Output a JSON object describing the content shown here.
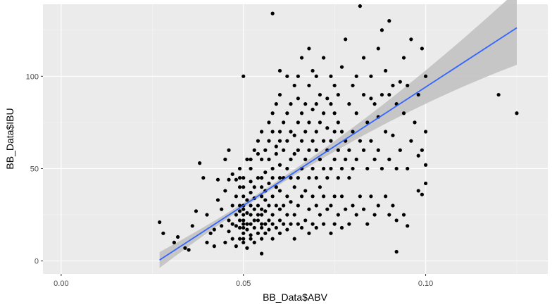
{
  "chart_data": {
    "type": "scatter",
    "title": "",
    "xlabel": "BB_Data$ABV",
    "ylabel": "BB_Data$IBU",
    "xlim": [
      -0.005,
      0.1335
    ],
    "ylim": [
      -7,
      139
    ],
    "x_ticks": [
      0.0,
      0.05,
      0.1
    ],
    "x_tick_labels": [
      "0.00",
      "0.05",
      "0.10"
    ],
    "y_ticks": [
      0,
      50,
      100
    ],
    "y_tick_labels": [
      "0",
      "50",
      "100"
    ],
    "grid": true,
    "legend": "none",
    "colors": {
      "panel_background": "#ebebeb",
      "grid_major": "#ffffff",
      "grid_minor": "#f5f5f5",
      "points": "#000000",
      "fit_line": "#3366ff",
      "confidence_band": "#c2c2c2"
    },
    "trend_line": {
      "method": "linear",
      "x_range": [
        0.027,
        0.125
      ],
      "intercept": -34.1,
      "slope": 1282.5,
      "se_band": true
    },
    "points": [
      [
        0.027,
        21
      ],
      [
        0.028,
        15
      ],
      [
        0.031,
        10
      ],
      [
        0.032,
        13
      ],
      [
        0.034,
        7
      ],
      [
        0.035,
        6
      ],
      [
        0.036,
        19
      ],
      [
        0.037,
        27
      ],
      [
        0.038,
        53
      ],
      [
        0.039,
        45
      ],
      [
        0.04,
        10
      ],
      [
        0.04,
        25
      ],
      [
        0.041,
        15
      ],
      [
        0.042,
        17
      ],
      [
        0.042,
        8
      ],
      [
        0.043,
        44
      ],
      [
        0.043,
        33
      ],
      [
        0.044,
        19
      ],
      [
        0.044,
        28
      ],
      [
        0.045,
        10
      ],
      [
        0.045,
        38
      ],
      [
        0.045,
        55
      ],
      [
        0.046,
        16
      ],
      [
        0.046,
        22
      ],
      [
        0.046,
        44
      ],
      [
        0.046,
        60
      ],
      [
        0.047,
        30
      ],
      [
        0.047,
        12
      ],
      [
        0.047,
        47
      ],
      [
        0.047,
        20
      ],
      [
        0.048,
        19
      ],
      [
        0.048,
        25
      ],
      [
        0.048,
        8
      ],
      [
        0.048,
        35
      ],
      [
        0.048,
        44
      ],
      [
        0.049,
        18
      ],
      [
        0.049,
        22
      ],
      [
        0.049,
        27
      ],
      [
        0.049,
        30
      ],
      [
        0.049,
        12
      ],
      [
        0.049,
        40
      ],
      [
        0.049,
        45
      ],
      [
        0.049,
        50
      ],
      [
        0.05,
        15
      ],
      [
        0.05,
        20
      ],
      [
        0.05,
        22
      ],
      [
        0.05,
        25
      ],
      [
        0.05,
        28
      ],
      [
        0.05,
        18
      ],
      [
        0.05,
        30
      ],
      [
        0.05,
        35
      ],
      [
        0.05,
        100
      ],
      [
        0.05,
        40
      ],
      [
        0.05,
        10
      ],
      [
        0.05,
        12
      ],
      [
        0.05,
        45
      ],
      [
        0.051,
        17
      ],
      [
        0.051,
        20
      ],
      [
        0.051,
        26
      ],
      [
        0.051,
        33
      ],
      [
        0.051,
        55
      ],
      [
        0.051,
        7
      ],
      [
        0.052,
        14
      ],
      [
        0.052,
        20
      ],
      [
        0.052,
        25
      ],
      [
        0.052,
        30
      ],
      [
        0.052,
        37
      ],
      [
        0.052,
        43
      ],
      [
        0.052,
        12
      ],
      [
        0.052,
        50
      ],
      [
        0.052,
        55
      ],
      [
        0.053,
        18
      ],
      [
        0.053,
        22
      ],
      [
        0.053,
        28
      ],
      [
        0.053,
        34
      ],
      [
        0.053,
        40
      ],
      [
        0.053,
        60
      ],
      [
        0.053,
        10
      ],
      [
        0.054,
        15
      ],
      [
        0.054,
        22
      ],
      [
        0.054,
        25
      ],
      [
        0.054,
        30
      ],
      [
        0.054,
        45
      ],
      [
        0.054,
        58
      ],
      [
        0.054,
        65
      ],
      [
        0.055,
        18
      ],
      [
        0.055,
        20
      ],
      [
        0.055,
        25
      ],
      [
        0.055,
        28
      ],
      [
        0.055,
        35
      ],
      [
        0.055,
        40
      ],
      [
        0.055,
        45
      ],
      [
        0.055,
        55
      ],
      [
        0.055,
        70
      ],
      [
        0.055,
        4
      ],
      [
        0.055,
        12
      ],
      [
        0.056,
        20
      ],
      [
        0.056,
        27
      ],
      [
        0.056,
        33
      ],
      [
        0.056,
        38
      ],
      [
        0.056,
        48
      ],
      [
        0.056,
        60
      ],
      [
        0.056,
        15
      ],
      [
        0.057,
        22
      ],
      [
        0.057,
        30
      ],
      [
        0.057,
        42
      ],
      [
        0.057,
        55
      ],
      [
        0.057,
        65
      ],
      [
        0.057,
        75
      ],
      [
        0.057,
        17
      ],
      [
        0.058,
        20
      ],
      [
        0.058,
        25
      ],
      [
        0.058,
        35
      ],
      [
        0.058,
        45
      ],
      [
        0.058,
        50
      ],
      [
        0.058,
        70
      ],
      [
        0.058,
        80
      ],
      [
        0.058,
        12
      ],
      [
        0.058,
        134
      ],
      [
        0.059,
        18
      ],
      [
        0.059,
        30
      ],
      [
        0.059,
        40
      ],
      [
        0.059,
        58
      ],
      [
        0.059,
        62
      ],
      [
        0.059,
        85
      ],
      [
        0.06,
        15
      ],
      [
        0.06,
        22
      ],
      [
        0.06,
        28
      ],
      [
        0.06,
        38
      ],
      [
        0.06,
        45
      ],
      [
        0.06,
        52
      ],
      [
        0.06,
        65
      ],
      [
        0.06,
        70
      ],
      [
        0.06,
        90
      ],
      [
        0.06,
        103
      ],
      [
        0.061,
        20
      ],
      [
        0.061,
        30
      ],
      [
        0.061,
        45
      ],
      [
        0.061,
        60
      ],
      [
        0.061,
        75
      ],
      [
        0.062,
        17
      ],
      [
        0.062,
        25
      ],
      [
        0.062,
        35
      ],
      [
        0.062,
        50
      ],
      [
        0.062,
        65
      ],
      [
        0.062,
        80
      ],
      [
        0.062,
        100
      ],
      [
        0.063,
        20
      ],
      [
        0.063,
        32
      ],
      [
        0.063,
        45
      ],
      [
        0.063,
        55
      ],
      [
        0.063,
        70
      ],
      [
        0.063,
        85
      ],
      [
        0.064,
        12
      ],
      [
        0.064,
        25
      ],
      [
        0.064,
        40
      ],
      [
        0.064,
        58
      ],
      [
        0.064,
        68
      ],
      [
        0.064,
        95
      ],
      [
        0.065,
        20
      ],
      [
        0.065,
        30
      ],
      [
        0.065,
        45
      ],
      [
        0.065,
        60
      ],
      [
        0.065,
        75
      ],
      [
        0.065,
        88
      ],
      [
        0.065,
        100
      ],
      [
        0.066,
        18
      ],
      [
        0.066,
        35
      ],
      [
        0.066,
        50
      ],
      [
        0.066,
        65
      ],
      [
        0.066,
        80
      ],
      [
        0.066,
        110
      ],
      [
        0.067,
        22
      ],
      [
        0.067,
        38
      ],
      [
        0.067,
        55
      ],
      [
        0.067,
        70
      ],
      [
        0.067,
        85
      ],
      [
        0.068,
        15
      ],
      [
        0.068,
        28
      ],
      [
        0.068,
        45
      ],
      [
        0.068,
        60
      ],
      [
        0.068,
        75
      ],
      [
        0.068,
        95
      ],
      [
        0.068,
        115
      ],
      [
        0.069,
        20
      ],
      [
        0.069,
        35
      ],
      [
        0.069,
        50
      ],
      [
        0.069,
        65
      ],
      [
        0.069,
        82
      ],
      [
        0.069,
        103
      ],
      [
        0.07,
        18
      ],
      [
        0.07,
        30
      ],
      [
        0.07,
        45
      ],
      [
        0.07,
        60
      ],
      [
        0.07,
        70
      ],
      [
        0.07,
        85
      ],
      [
        0.07,
        100
      ],
      [
        0.071,
        25
      ],
      [
        0.071,
        40
      ],
      [
        0.071,
        55
      ],
      [
        0.071,
        75
      ],
      [
        0.071,
        90
      ],
      [
        0.072,
        20
      ],
      [
        0.072,
        35
      ],
      [
        0.072,
        50
      ],
      [
        0.072,
        65
      ],
      [
        0.072,
        80
      ],
      [
        0.072,
        110
      ],
      [
        0.073,
        28
      ],
      [
        0.073,
        45
      ],
      [
        0.073,
        60
      ],
      [
        0.073,
        72
      ],
      [
        0.073,
        88
      ],
      [
        0.074,
        15
      ],
      [
        0.074,
        30
      ],
      [
        0.074,
        50
      ],
      [
        0.074,
        65
      ],
      [
        0.074,
        85
      ],
      [
        0.074,
        100
      ],
      [
        0.075,
        20
      ],
      [
        0.075,
        35
      ],
      [
        0.075,
        55
      ],
      [
        0.075,
        70
      ],
      [
        0.075,
        80
      ],
      [
        0.075,
        95
      ],
      [
        0.076,
        25
      ],
      [
        0.076,
        45
      ],
      [
        0.076,
        60
      ],
      [
        0.076,
        75
      ],
      [
        0.076,
        90
      ],
      [
        0.077,
        18
      ],
      [
        0.077,
        35
      ],
      [
        0.077,
        50
      ],
      [
        0.077,
        70
      ],
      [
        0.077,
        105
      ],
      [
        0.078,
        28
      ],
      [
        0.078,
        55
      ],
      [
        0.078,
        65
      ],
      [
        0.078,
        120
      ],
      [
        0.079,
        20
      ],
      [
        0.079,
        45
      ],
      [
        0.079,
        60
      ],
      [
        0.079,
        85
      ],
      [
        0.08,
        30
      ],
      [
        0.08,
        50
      ],
      [
        0.08,
        70
      ],
      [
        0.08,
        95
      ],
      [
        0.081,
        25
      ],
      [
        0.081,
        55
      ],
      [
        0.081,
        80
      ],
      [
        0.081,
        100
      ],
      [
        0.082,
        35
      ],
      [
        0.082,
        65
      ],
      [
        0.082,
        138
      ],
      [
        0.083,
        28
      ],
      [
        0.083,
        60
      ],
      [
        0.083,
        90
      ],
      [
        0.083,
        110
      ],
      [
        0.084,
        20
      ],
      [
        0.084,
        50
      ],
      [
        0.084,
        75
      ],
      [
        0.085,
        35
      ],
      [
        0.085,
        65
      ],
      [
        0.085,
        88
      ],
      [
        0.085,
        100
      ],
      [
        0.086,
        25
      ],
      [
        0.086,
        55
      ],
      [
        0.086,
        85
      ],
      [
        0.087,
        30
      ],
      [
        0.087,
        60
      ],
      [
        0.087,
        78
      ],
      [
        0.087,
        115
      ],
      [
        0.088,
        50
      ],
      [
        0.088,
        90
      ],
      [
        0.088,
        125
      ],
      [
        0.089,
        35
      ],
      [
        0.089,
        70
      ],
      [
        0.089,
        103
      ],
      [
        0.09,
        25
      ],
      [
        0.09,
        55
      ],
      [
        0.09,
        90
      ],
      [
        0.09,
        130
      ],
      [
        0.091,
        30
      ],
      [
        0.091,
        68
      ],
      [
        0.091,
        95
      ],
      [
        0.092,
        5
      ],
      [
        0.092,
        22
      ],
      [
        0.092,
        50
      ],
      [
        0.092,
        85
      ],
      [
        0.093,
        60
      ],
      [
        0.093,
        97
      ],
      [
        0.094,
        25
      ],
      [
        0.094,
        80
      ],
      [
        0.094,
        110
      ],
      [
        0.095,
        19
      ],
      [
        0.095,
        50
      ],
      [
        0.095,
        95
      ],
      [
        0.096,
        65
      ],
      [
        0.096,
        120
      ],
      [
        0.097,
        75
      ],
      [
        0.098,
        38
      ],
      [
        0.098,
        57
      ],
      [
        0.098,
        90
      ],
      [
        0.099,
        36
      ],
      [
        0.099,
        60
      ],
      [
        0.099,
        115
      ],
      [
        0.1,
        52
      ],
      [
        0.1,
        70
      ],
      [
        0.1,
        100
      ],
      [
        0.1,
        42
      ],
      [
        0.12,
        90
      ],
      [
        0.125,
        80
      ]
    ]
  }
}
